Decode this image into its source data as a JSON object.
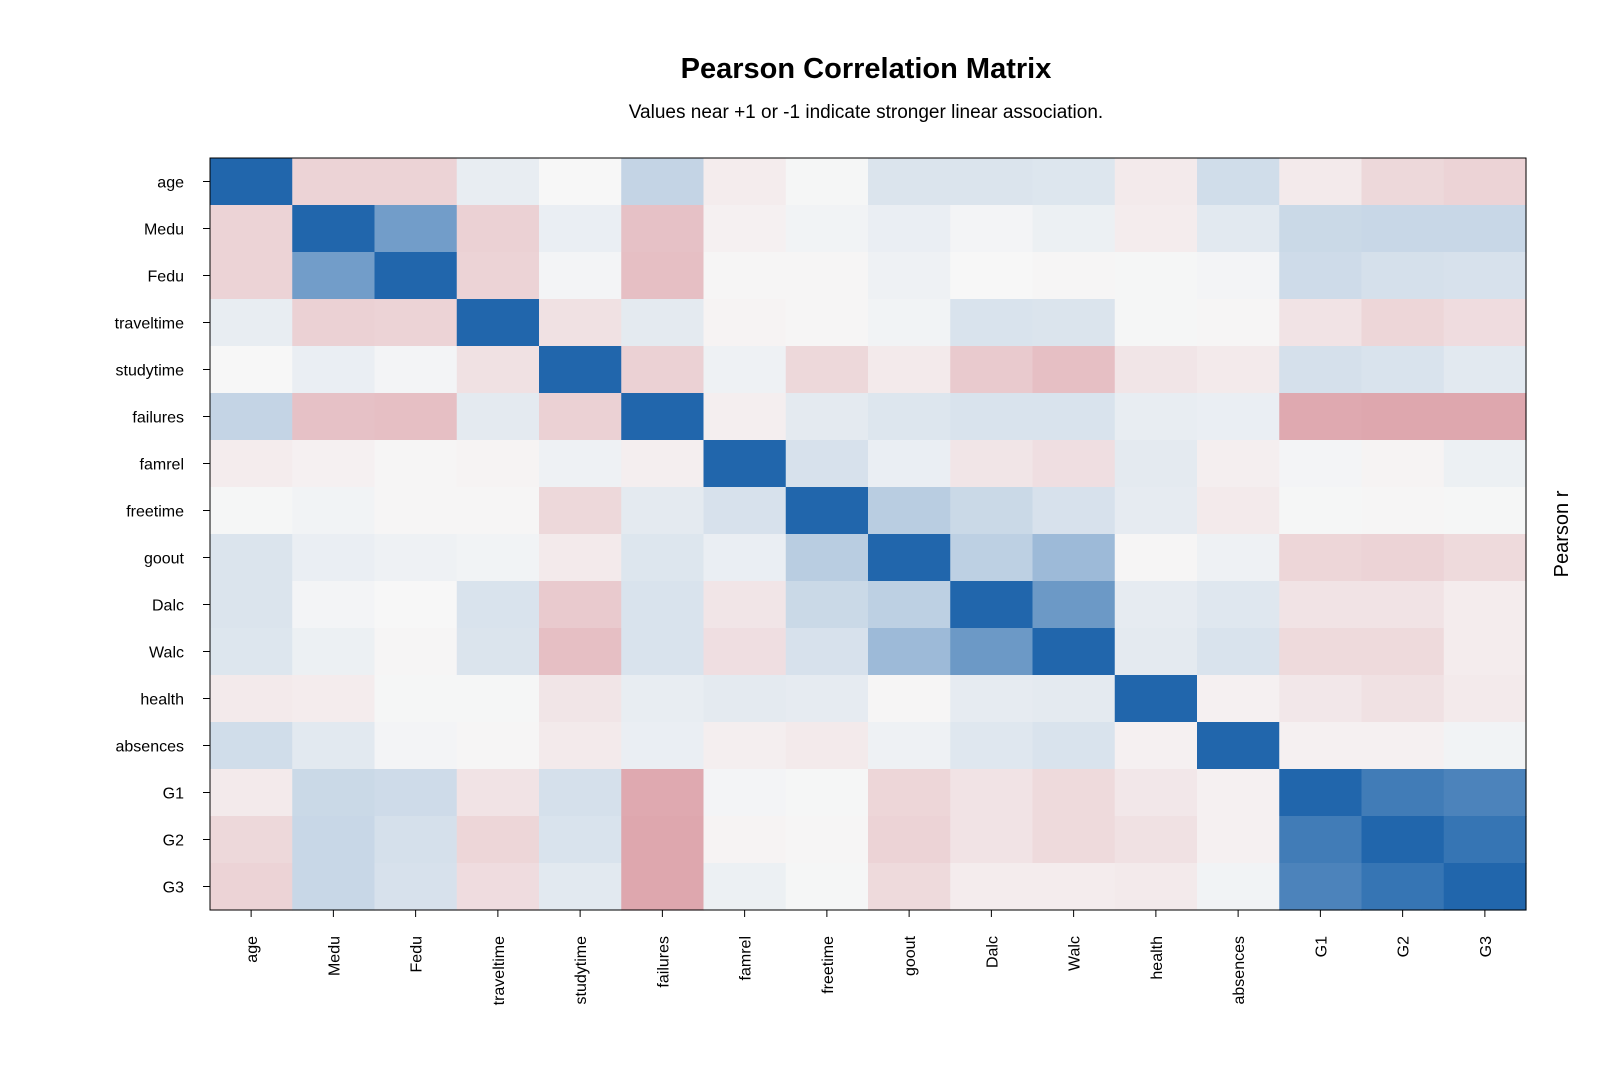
{
  "chart_data": {
    "type": "heatmap",
    "title": "Pearson Correlation Matrix",
    "subtitle": "Values near +1 or -1 indicate stronger linear association.",
    "side_label": "Pearson r",
    "variables": [
      "age",
      "Medu",
      "Fedu",
      "traveltime",
      "studytime",
      "failures",
      "famrel",
      "freetime",
      "goout",
      "Dalc",
      "Walc",
      "health",
      "absences",
      "G1",
      "G2",
      "G3"
    ],
    "color_scale": {
      "negative": "#b2182b",
      "zero": "#f7f7f7",
      "positive": "#2166ac",
      "range": [
        -1,
        1
      ]
    },
    "matrix": [
      [
        1.0,
        -0.16,
        -0.16,
        0.07,
        0.0,
        0.24,
        -0.05,
        0.01,
        0.13,
        0.13,
        0.12,
        -0.06,
        0.18,
        -0.06,
        -0.14,
        -0.16
      ],
      [
        -0.16,
        1.0,
        0.62,
        -0.17,
        0.06,
        -0.24,
        -0.03,
        0.03,
        0.06,
        0.02,
        0.05,
        -0.05,
        0.1,
        0.21,
        0.22,
        0.22
      ],
      [
        -0.16,
        0.62,
        1.0,
        -0.16,
        0.02,
        -0.25,
        -0.01,
        -0.01,
        0.04,
        0.0,
        -0.01,
        0.01,
        0.02,
        0.19,
        0.16,
        0.15
      ],
      [
        0.07,
        -0.17,
        -0.16,
        1.0,
        -0.1,
        0.09,
        -0.02,
        -0.01,
        0.03,
        0.14,
        0.13,
        0.01,
        -0.01,
        -0.09,
        -0.15,
        -0.12
      ],
      [
        0.0,
        0.06,
        0.02,
        -0.1,
        1.0,
        -0.17,
        0.04,
        -0.14,
        -0.06,
        -0.2,
        -0.25,
        -0.08,
        -0.06,
        0.16,
        0.14,
        0.1
      ],
      [
        0.24,
        -0.24,
        -0.25,
        0.09,
        -0.17,
        1.0,
        -0.04,
        0.09,
        0.12,
        0.14,
        0.14,
        0.07,
        0.06,
        -0.35,
        -0.36,
        -0.36
      ],
      [
        -0.05,
        -0.03,
        -0.01,
        -0.02,
        0.04,
        -0.04,
        1.0,
        0.15,
        0.06,
        -0.08,
        -0.11,
        0.09,
        -0.04,
        0.02,
        -0.02,
        0.05
      ],
      [
        0.01,
        0.03,
        -0.01,
        -0.01,
        -0.14,
        0.09,
        0.15,
        1.0,
        0.29,
        0.21,
        0.15,
        0.08,
        -0.06,
        0.01,
        -0.01,
        0.01
      ],
      [
        0.13,
        0.06,
        0.04,
        0.03,
        -0.06,
        0.12,
        0.06,
        0.29,
        1.0,
        0.27,
        0.42,
        -0.01,
        0.04,
        -0.15,
        -0.16,
        -0.13
      ],
      [
        0.13,
        0.02,
        0.0,
        0.14,
        -0.2,
        0.14,
        -0.08,
        0.21,
        0.27,
        1.0,
        0.65,
        0.08,
        0.11,
        -0.09,
        -0.09,
        -0.05
      ],
      [
        0.12,
        0.05,
        -0.01,
        0.13,
        -0.25,
        0.14,
        -0.11,
        0.15,
        0.42,
        0.65,
        1.0,
        0.09,
        0.14,
        -0.13,
        -0.13,
        -0.05
      ],
      [
        -0.06,
        -0.05,
        0.01,
        0.01,
        -0.08,
        0.07,
        0.09,
        0.08,
        -0.01,
        0.08,
        0.09,
        1.0,
        -0.03,
        -0.07,
        -0.1,
        -0.06
      ],
      [
        0.18,
        0.1,
        0.02,
        -0.01,
        -0.06,
        0.06,
        -0.04,
        -0.06,
        0.04,
        0.11,
        0.14,
        -0.03,
        1.0,
        -0.03,
        -0.03,
        0.03
      ],
      [
        -0.06,
        0.21,
        0.19,
        -0.09,
        0.16,
        -0.35,
        0.02,
        0.01,
        -0.15,
        -0.09,
        -0.13,
        -0.07,
        -0.03,
        1.0,
        0.85,
        0.8
      ],
      [
        -0.14,
        0.22,
        0.16,
        -0.15,
        0.14,
        -0.36,
        -0.02,
        -0.01,
        -0.16,
        -0.09,
        -0.13,
        -0.1,
        -0.03,
        0.85,
        1.0,
        0.9
      ],
      [
        -0.16,
        0.22,
        0.15,
        -0.12,
        0.1,
        -0.36,
        0.05,
        0.01,
        -0.13,
        -0.05,
        -0.05,
        -0.06,
        0.03,
        0.8,
        0.9,
        1.0
      ]
    ],
    "legend": "none",
    "grid": false
  }
}
